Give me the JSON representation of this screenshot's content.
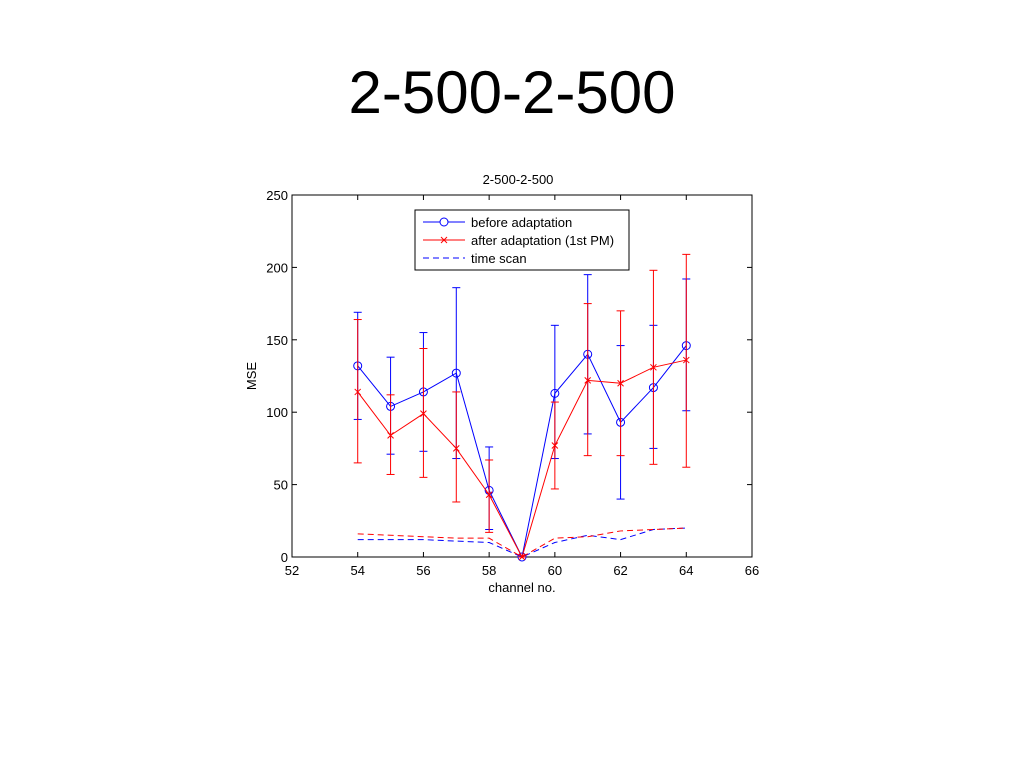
{
  "slide": {
    "title": "2-500-2-500"
  },
  "chart_data": {
    "type": "line",
    "title": "2-500-2-500",
    "xlabel": "channel no.",
    "ylabel": "MSE",
    "xlim": [
      52,
      66
    ],
    "ylim": [
      0,
      250
    ],
    "xticks": [
      52,
      54,
      56,
      58,
      60,
      62,
      64,
      66
    ],
    "yticks": [
      0,
      50,
      100,
      150,
      200,
      250
    ],
    "grid": false,
    "legend_position": "top-center",
    "series": [
      {
        "name": "before adaptation",
        "color": "#0000ff",
        "style": "solid",
        "marker": "circle",
        "x": [
          54,
          55,
          56,
          57,
          58,
          59,
          60,
          61,
          62,
          63,
          64
        ],
        "y": [
          132,
          104,
          114,
          127,
          46,
          0,
          113,
          140,
          93,
          117,
          146
        ],
        "err_low": [
          95,
          71,
          73,
          68,
          19,
          0,
          68,
          85,
          40,
          75,
          101
        ],
        "err_high": [
          169,
          138,
          155,
          186,
          76,
          0,
          160,
          195,
          146,
          160,
          192
        ]
      },
      {
        "name": "after adaptation (1st PM)",
        "color": "#ff0000",
        "style": "solid",
        "marker": "x",
        "x": [
          54,
          55,
          56,
          57,
          58,
          59,
          60,
          61,
          62,
          63,
          64
        ],
        "y": [
          114,
          84,
          99,
          75,
          43,
          0,
          77,
          122,
          120,
          131,
          136
        ],
        "err_low": [
          65,
          57,
          55,
          38,
          17,
          0,
          47,
          70,
          70,
          64,
          62
        ],
        "err_high": [
          164,
          112,
          144,
          114,
          67,
          0,
          107,
          175,
          170,
          198,
          209
        ]
      },
      {
        "name": "time scan",
        "color": "#0000ff",
        "style": "dashed",
        "marker": "none",
        "x": [
          54,
          55,
          56,
          57,
          58,
          59,
          60,
          61,
          62,
          63,
          64
        ],
        "y": [
          12,
          12,
          12,
          11,
          10,
          0,
          10,
          15,
          12,
          19,
          20
        ]
      },
      {
        "color": "#ff0000",
        "style": "dashed",
        "marker": "none",
        "x": [
          54,
          55,
          56,
          57,
          58,
          59,
          60,
          61,
          62,
          63,
          64
        ],
        "y": [
          16,
          15,
          14,
          13,
          13,
          0,
          13,
          14,
          18,
          19,
          20
        ]
      }
    ]
  }
}
